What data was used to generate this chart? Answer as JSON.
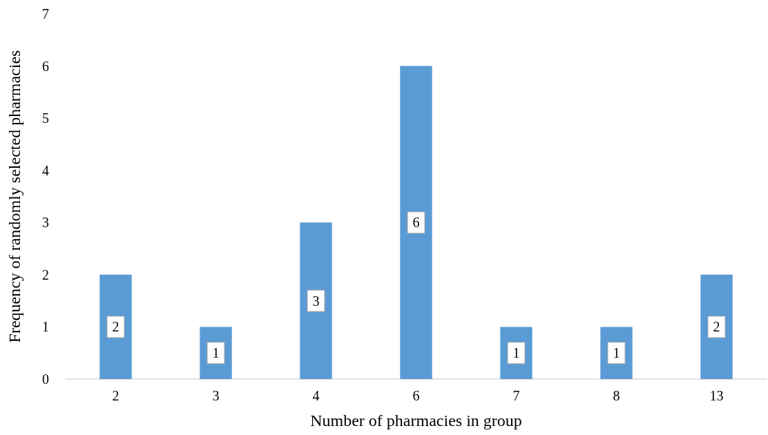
{
  "chart_data": {
    "type": "bar",
    "xlabel": "Number of pharmacies in group",
    "ylabel": "Frequency of randomly selected pharmacies",
    "categories": [
      "2",
      "3",
      "4",
      "6",
      "7",
      "8",
      "13"
    ],
    "values": [
      2,
      1,
      3,
      6,
      1,
      1,
      2
    ],
    "color": "#5b9bd5",
    "ylim": [
      0,
      7
    ],
    "yticks": [
      0,
      1,
      2,
      3,
      4,
      5,
      6,
      7
    ],
    "grid": false,
    "data_labels": true
  }
}
